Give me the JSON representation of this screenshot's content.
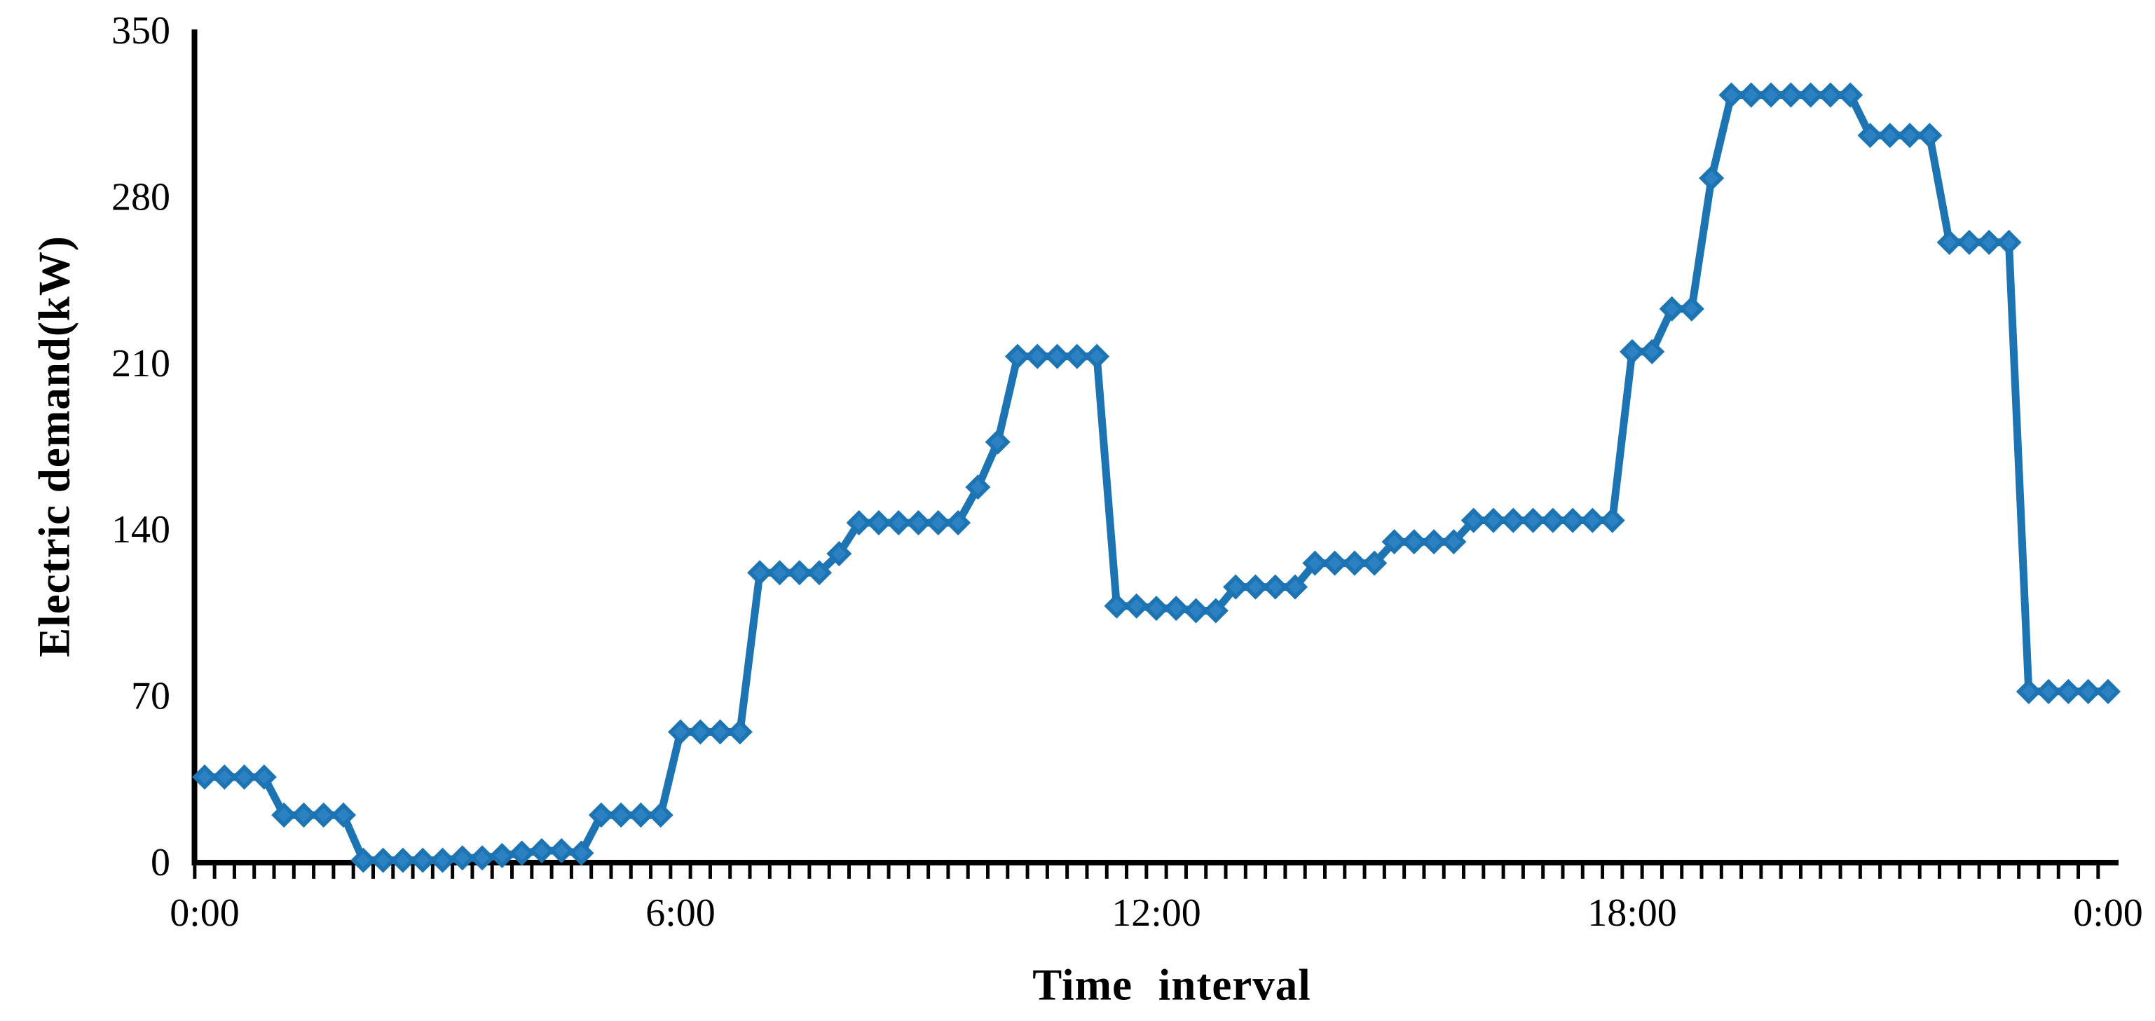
{
  "chart_data": {
    "type": "line",
    "title": "",
    "xlabel": "Time interval",
    "ylabel": "Electric demand(kW)",
    "ylim": [
      0,
      350
    ],
    "ytick_labels": [
      "0",
      "70",
      "140",
      "210",
      "280",
      "350"
    ],
    "yticks": [
      0,
      70,
      140,
      210,
      280,
      350
    ],
    "x_tick_labels": [
      "0:00",
      "6:00",
      "12:00",
      "18:00",
      "0:00"
    ],
    "x_tick_hours": [
      0,
      6,
      12,
      18,
      24
    ],
    "grid": "off",
    "legend": "none",
    "interval_minutes": 15,
    "series": [
      {
        "name": "Electric demand",
        "times": [
          "0:00",
          "0:15",
          "0:30",
          "0:45",
          "1:00",
          "1:15",
          "1:30",
          "1:45",
          "2:00",
          "2:15",
          "2:30",
          "2:45",
          "3:00",
          "3:15",
          "3:30",
          "3:45",
          "4:00",
          "4:15",
          "4:30",
          "4:45",
          "5:00",
          "5:15",
          "5:30",
          "5:45",
          "6:00",
          "6:15",
          "6:30",
          "6:45",
          "7:00",
          "7:15",
          "7:30",
          "7:45",
          "8:00",
          "8:15",
          "8:30",
          "8:45",
          "9:00",
          "9:15",
          "9:30",
          "9:45",
          "10:00",
          "10:15",
          "10:30",
          "10:45",
          "11:00",
          "11:15",
          "11:30",
          "11:45",
          "12:00",
          "12:15",
          "12:30",
          "12:45",
          "13:00",
          "13:15",
          "13:30",
          "13:45",
          "14:00",
          "14:15",
          "14:30",
          "14:45",
          "15:00",
          "15:15",
          "15:30",
          "15:45",
          "16:00",
          "16:15",
          "16:30",
          "16:45",
          "17:00",
          "17:15",
          "17:30",
          "17:45",
          "18:00",
          "18:15",
          "18:30",
          "18:45",
          "19:00",
          "19:15",
          "19:30",
          "19:45",
          "20:00",
          "20:15",
          "20:30",
          "20:45",
          "21:00",
          "21:15",
          "21:30",
          "21:45",
          "22:00",
          "22:15",
          "22:30",
          "22:45",
          "23:00",
          "23:15",
          "23:30",
          "23:45",
          "0:00"
        ],
        "values": [
          36,
          36,
          36,
          36,
          20,
          20,
          20,
          20,
          1,
          1,
          1,
          1,
          1,
          2,
          2,
          3,
          4,
          5,
          5,
          4,
          20,
          20,
          20,
          20,
          55,
          55,
          55,
          55,
          122,
          122,
          122,
          122,
          130,
          143,
          143,
          143,
          143,
          143,
          143,
          158,
          177,
          213,
          213,
          213,
          213,
          213,
          108,
          108,
          107,
          107,
          106,
          106,
          116,
          116,
          116,
          116,
          126,
          126,
          126,
          126,
          135,
          135,
          135,
          135,
          144,
          144,
          144,
          144,
          144,
          144,
          144,
          144,
          215,
          215,
          233,
          233,
          288,
          323,
          323,
          323,
          323,
          323,
          323,
          323,
          306,
          306,
          306,
          306,
          261,
          261,
          261,
          261,
          72,
          72,
          72,
          72,
          72
        ]
      }
    ],
    "colors": {
      "line": "#1D74B3",
      "marker": "#1D74B3",
      "marker_inner": "#2B81C1",
      "axis": "#000000",
      "text": "#000000",
      "background": "#FFFFFF"
    },
    "marker_shape": "diamond"
  }
}
